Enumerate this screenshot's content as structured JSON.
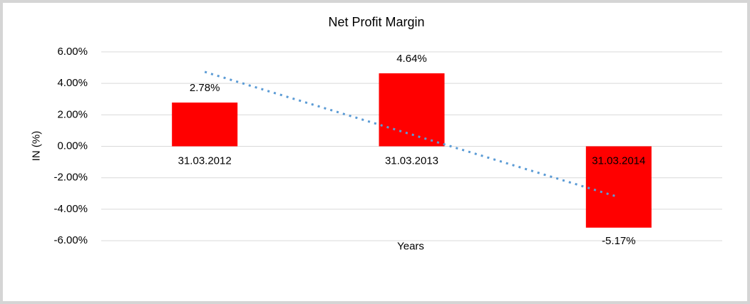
{
  "frame": {
    "background": "#ffffff",
    "border_color": "#d5d5d5"
  },
  "chart_data": {
    "type": "bar",
    "title": "Net Profit Margin",
    "xlabel": "Years",
    "ylabel": "IN (%)",
    "categories": [
      "31.03.2012",
      "31.03.2013",
      "31.03.2014"
    ],
    "values": [
      2.78,
      4.64,
      -5.17
    ],
    "data_labels": [
      "2.78%",
      "4.64%",
      "-5.17%"
    ],
    "bar_color": "#ff0000",
    "text_color": "#000000",
    "ylim": [
      -6,
      6
    ],
    "yticks": [
      6,
      4,
      2,
      0,
      -2,
      -4,
      -6
    ],
    "ytick_labels": [
      "6.00%",
      "4.00%",
      "2.00%",
      "0.00%",
      "-2.00%",
      "-4.00%",
      "-6.00%"
    ],
    "grid": true,
    "gridline_color": "#d9d9d9",
    "legend": "none",
    "trendline": {
      "type": "linear",
      "style": "dotted",
      "color": "#5b9bd5",
      "start_value": 4.73,
      "end_value": -3.23
    }
  }
}
